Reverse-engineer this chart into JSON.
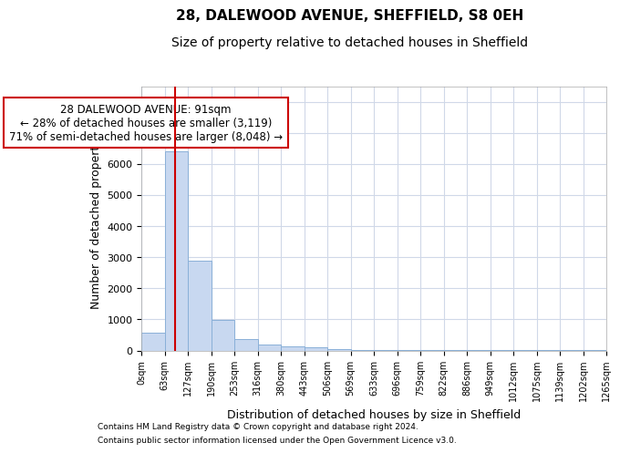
{
  "title1": "28, DALEWOOD AVENUE, SHEFFIELD, S8 0EH",
  "title2": "Size of property relative to detached houses in Sheffield",
  "xlabel": "Distribution of detached houses by size in Sheffield",
  "ylabel": "Number of detached properties",
  "footnote1": "Contains HM Land Registry data © Crown copyright and database right 2024.",
  "footnote2": "Contains public sector information licensed under the Open Government Licence v3.0.",
  "bin_edges": [
    0,
    63,
    127,
    190,
    253,
    316,
    380,
    443,
    506,
    569,
    633,
    696,
    759,
    822,
    886,
    949,
    1012,
    1075,
    1139,
    1202,
    1265
  ],
  "bar_heights": [
    580,
    6400,
    2900,
    970,
    370,
    200,
    120,
    90,
    30,
    15,
    10,
    10,
    8,
    6,
    5,
    5,
    4,
    3,
    3,
    2
  ],
  "bar_color": "#c8d8f0",
  "bar_edge_color": "#8ab0d8",
  "property_size": 91,
  "vline_color": "#cc0000",
  "annotation_text": "28 DALEWOOD AVENUE: 91sqm\n← 28% of detached houses are smaller (3,119)\n71% of semi-detached houses are larger (8,048) →",
  "annotation_box_color": "#ffffff",
  "annotation_box_edgecolor": "#cc0000",
  "ylim_max": 8500,
  "ytick_max": 8000,
  "tick_labels": [
    "0sqm",
    "63sqm",
    "127sqm",
    "190sqm",
    "253sqm",
    "316sqm",
    "380sqm",
    "443sqm",
    "506sqm",
    "569sqm",
    "633sqm",
    "696sqm",
    "759sqm",
    "822sqm",
    "886sqm",
    "949sqm",
    "1012sqm",
    "1075sqm",
    "1139sqm",
    "1202sqm",
    "1265sqm"
  ],
  "background_color": "#ffffff",
  "grid_color": "#d0d8e8",
  "title1_fontsize": 11,
  "title2_fontsize": 10,
  "xlabel_fontsize": 9,
  "ylabel_fontsize": 9,
  "annot_fontsize": 8.5,
  "tick_fontsize": 7,
  "ytick_fontsize": 8
}
